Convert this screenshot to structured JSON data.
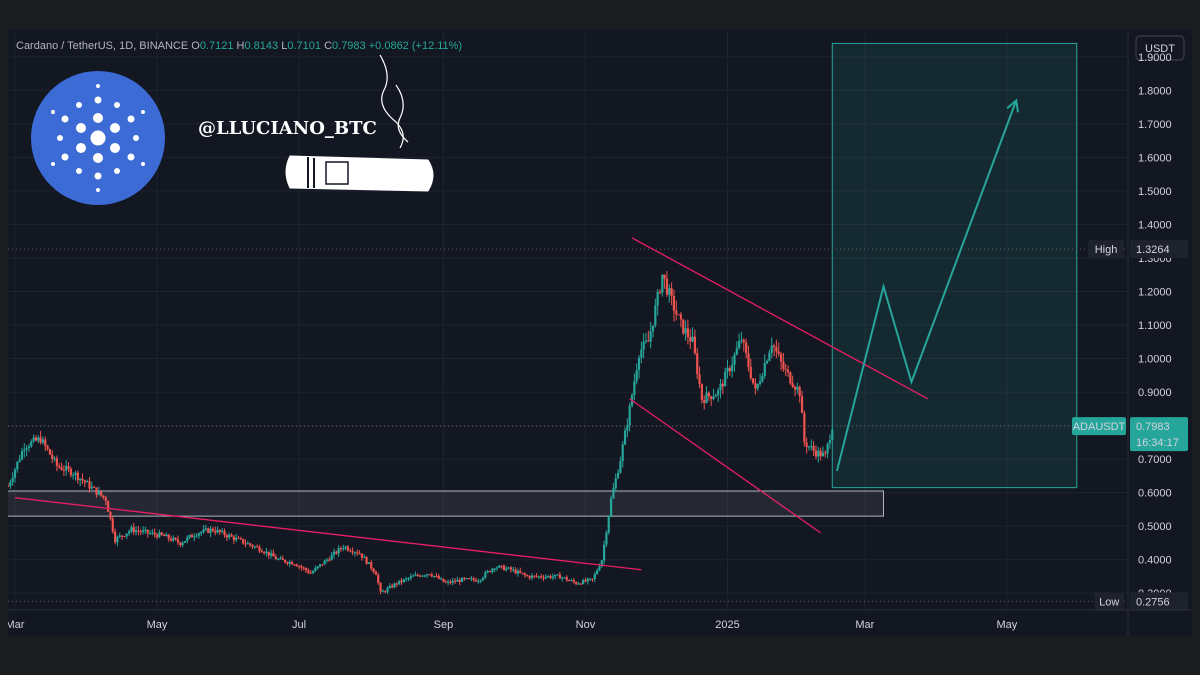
{
  "header": {
    "symbol": "Cardano / TetherUS, 1D, BINANCE",
    "o_label": "O",
    "o": "0.7121",
    "h_label": "H",
    "h": "0.8143",
    "l_label": "L",
    "l": "0.7101",
    "c_label": "C",
    "c": "0.7983",
    "change": "+0.0862 (+12.11%)"
  },
  "watermark": "@LLUCIANO_BTC",
  "colors": {
    "background": "#131722",
    "up": "#26a69a",
    "down": "#ef5350",
    "trendline": "#e91e63",
    "projection": "#26a69a",
    "logo": "#3d6bd6"
  },
  "icons": [
    "cardano-logo-icon",
    "cigar-icon"
  ],
  "chart_data": {
    "type": "candlestick",
    "currency": "USDT",
    "y_scale": "linear",
    "ylim": [
      0.25,
      1.98
    ],
    "y_ticks": [
      "0.3000",
      "0.4000",
      "0.5000",
      "0.6000",
      "0.7000",
      "0.8000",
      "0.9000",
      "1.0000",
      "1.1000",
      "1.2000",
      "1.3000",
      "1.4000",
      "1.5000",
      "1.6000",
      "1.7000",
      "1.8000",
      "1.9000"
    ],
    "x_ticks": [
      "Mar",
      "May",
      "Jul",
      "Sep",
      "Nov",
      "2025",
      "Mar",
      "May"
    ],
    "xlim": [
      "2024-02-27",
      "2025-06-22"
    ],
    "x_tick_dates": [
      "2024-03-01",
      "2024-05-01",
      "2024-07-01",
      "2024-09-01",
      "2024-11-01",
      "2025-01-01",
      "2025-03-01",
      "2025-05-01"
    ],
    "price_path": [
      [
        "2024-02-27",
        0.62
      ],
      [
        "2024-03-05",
        0.74
      ],
      [
        "2024-03-12",
        0.76
      ],
      [
        "2024-03-19",
        0.68
      ],
      [
        "2024-03-26",
        0.66
      ],
      [
        "2024-04-02",
        0.62
      ],
      [
        "2024-04-09",
        0.58
      ],
      [
        "2024-04-13",
        0.46
      ],
      [
        "2024-04-20",
        0.49
      ],
      [
        "2024-04-27",
        0.48
      ],
      [
        "2024-05-04",
        0.47
      ],
      [
        "2024-05-11",
        0.45
      ],
      [
        "2024-05-18",
        0.48
      ],
      [
        "2024-05-25",
        0.49
      ],
      [
        "2024-06-01",
        0.47
      ],
      [
        "2024-06-08",
        0.45
      ],
      [
        "2024-06-15",
        0.43
      ],
      [
        "2024-06-22",
        0.4
      ],
      [
        "2024-06-29",
        0.39
      ],
      [
        "2024-07-06",
        0.36
      ],
      [
        "2024-07-13",
        0.4
      ],
      [
        "2024-07-20",
        0.44
      ],
      [
        "2024-07-27",
        0.42
      ],
      [
        "2024-08-03",
        0.36
      ],
      [
        "2024-08-05",
        0.3
      ],
      [
        "2024-08-12",
        0.33
      ],
      [
        "2024-08-19",
        0.35
      ],
      [
        "2024-08-26",
        0.36
      ],
      [
        "2024-09-02",
        0.33
      ],
      [
        "2024-09-09",
        0.34
      ],
      [
        "2024-09-16",
        0.34
      ],
      [
        "2024-09-23",
        0.38
      ],
      [
        "2024-09-30",
        0.37
      ],
      [
        "2024-10-07",
        0.35
      ],
      [
        "2024-10-14",
        0.35
      ],
      [
        "2024-10-21",
        0.35
      ],
      [
        "2024-10-28",
        0.33
      ],
      [
        "2024-11-04",
        0.34
      ],
      [
        "2024-11-08",
        0.4
      ],
      [
        "2024-11-12",
        0.58
      ],
      [
        "2024-11-16",
        0.7
      ],
      [
        "2024-11-20",
        0.85
      ],
      [
        "2024-11-24",
        1.02
      ],
      [
        "2024-11-28",
        1.05
      ],
      [
        "2024-12-02",
        1.18
      ],
      [
        "2024-12-04",
        1.25
      ],
      [
        "2024-12-08",
        1.17
      ],
      [
        "2024-12-12",
        1.1
      ],
      [
        "2024-12-17",
        1.05
      ],
      [
        "2024-12-21",
        0.88
      ],
      [
        "2024-12-28",
        0.9
      ],
      [
        "2025-01-03",
        0.99
      ],
      [
        "2025-01-07",
        1.06
      ],
      [
        "2025-01-13",
        0.9
      ],
      [
        "2025-01-20",
        1.05
      ],
      [
        "2025-01-25",
        0.97
      ],
      [
        "2025-02-01",
        0.9
      ],
      [
        "2025-02-03",
        0.75
      ],
      [
        "2025-02-08",
        0.72
      ],
      [
        "2025-02-12",
        0.71
      ],
      [
        "2025-02-15",
        0.8
      ]
    ],
    "last_price": {
      "label": "ADAUSDT",
      "value": "0.7983",
      "countdown": "16:34:17"
    },
    "high": {
      "label": "High",
      "value": "1.3264",
      "date": "2024-12-03"
    },
    "low": {
      "label": "Low",
      "value": "0.2756",
      "date": "2024-08-05"
    },
    "support_zone": {
      "x1": "2024-02-27",
      "x2": "2025-03-09",
      "y_low": 0.53,
      "y_high": 0.605
    },
    "trendlines": [
      {
        "x1": "2024-03-01",
        "y1": 0.585,
        "x2": "2024-11-25",
        "y2": 0.37
      },
      {
        "x1": "2024-11-21",
        "y1": 1.36,
        "x2": "2025-03-28",
        "y2": 0.88
      },
      {
        "x1": "2024-11-20",
        "y1": 0.88,
        "x2": "2025-02-10",
        "y2": 0.48
      }
    ],
    "target_box": {
      "x1": "2025-02-15",
      "x2": "2025-05-31",
      "y_low": 0.615,
      "y_high": 1.94
    },
    "projection_path": [
      [
        "2025-02-17",
        0.665
      ],
      [
        "2025-03-09",
        1.215
      ],
      [
        "2025-03-21",
        0.93
      ],
      [
        "2025-05-05",
        1.77
      ]
    ]
  }
}
